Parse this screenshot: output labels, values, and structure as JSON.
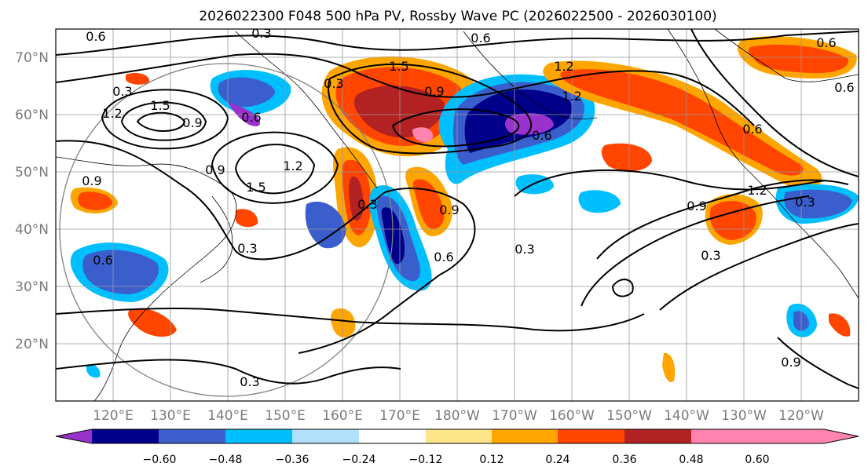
{
  "title": "2026022300 F048 500 hPa PV, Rossby Wave PC (2026022500 - 2026030100)",
  "lat_labels": [
    "70°N",
    "60°N",
    "50°N",
    "40°N",
    "30°N",
    "20°N"
  ],
  "lon_labels": [
    "120°E",
    "130°E",
    "140°E",
    "150°E",
    "160°E",
    "170°E",
    "180°W",
    "170°W",
    "160°W",
    "150°W",
    "140°W",
    "130°W",
    "120°W"
  ],
  "colorbar": {
    "ticks": [
      "−0.60",
      "−0.48",
      "−0.36",
      "−0.24",
      "−0.12",
      "0.12",
      "0.24",
      "0.36",
      "0.48",
      "0.60"
    ],
    "colors": [
      "#9932cc",
      "#00008b",
      "#3a5fcd",
      "#00bfff",
      "#b0e0fa",
      "#ffffff",
      "#fde68a",
      "#ffa500",
      "#ff4500",
      "#b22222",
      "#ff85b0"
    ]
  },
  "contour_labels": [
    "0.6",
    "0.3",
    "0.6",
    "1.5",
    "0.3",
    "0.9",
    "1.2",
    "1.5",
    "0.9",
    "1.2",
    "0.6",
    "0.9",
    "1.5",
    "1.2",
    "0.3",
    "0.6",
    "0.9",
    "0.6",
    "0.3",
    "0.6",
    "0.9",
    "0.3",
    "1.2",
    "0.9",
    "0.6",
    "0.3",
    "0.3",
    "0.3",
    "0.3",
    "0.6",
    "1.2",
    "0.6",
    "0.9"
  ]
}
